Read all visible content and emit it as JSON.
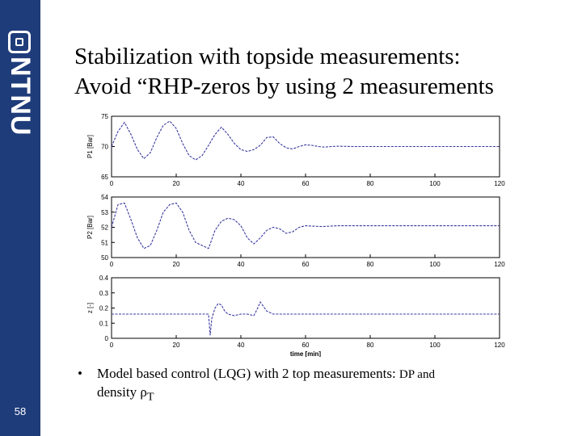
{
  "colors": {
    "brand": "#1f3c7a",
    "signal": "#3a3aa0"
  },
  "sidebar": {
    "brand_text": "NTNU",
    "logo_icon": "ntnu-logo-icon",
    "page_number": "58"
  },
  "slide": {
    "title_line1": "Stabilization with topside measurements:",
    "title_line2": "Avoid “RHP-zeros by using 2 measurements",
    "bullet_main": "Model based control (LQG) with 2 top measurements: ",
    "bullet_small": "DP and",
    "bullet_line2": "density ρ",
    "bullet_sub": "T"
  },
  "chart_data": [
    {
      "type": "line",
      "ylabel": "P1 [Bar]",
      "xlim": [
        0,
        120
      ],
      "ylim": [
        65,
        75
      ],
      "xticks": [
        0,
        20,
        40,
        60,
        80,
        100,
        120
      ],
      "yticks": [
        65,
        70,
        75
      ],
      "x": [
        0,
        2,
        4,
        6,
        8,
        10,
        12,
        14,
        16,
        18,
        20,
        22,
        24,
        26,
        28,
        30,
        32,
        34,
        36,
        38,
        40,
        42,
        44,
        46,
        48,
        50,
        52,
        54,
        56,
        58,
        60,
        62,
        64,
        66,
        68,
        70,
        75,
        80,
        85,
        90,
        95,
        100,
        105,
        110,
        115,
        120
      ],
      "y": [
        70,
        72.5,
        74,
        72,
        69.5,
        68,
        69,
        71.5,
        73.5,
        74.2,
        73,
        70.5,
        68.5,
        67.8,
        68.5,
        70.2,
        72,
        73.2,
        72,
        70.5,
        69.5,
        69.2,
        69.5,
        70.2,
        71.5,
        71.6,
        70.5,
        69.8,
        69.6,
        70,
        70.3,
        70.2,
        70,
        69.9,
        70,
        70.05,
        70,
        70,
        70,
        70,
        70,
        70,
        70,
        70,
        70,
        70
      ]
    },
    {
      "type": "line",
      "ylabel": "P2 [Bar]",
      "xlim": [
        0,
        120
      ],
      "ylim": [
        50,
        54
      ],
      "xticks": [
        0,
        20,
        40,
        60,
        80,
        100,
        120
      ],
      "yticks": [
        50,
        51,
        52,
        53,
        54
      ],
      "x": [
        0,
        2,
        4,
        6,
        8,
        10,
        12,
        14,
        16,
        18,
        20,
        22,
        24,
        26,
        28,
        30,
        32,
        34,
        36,
        38,
        40,
        42,
        44,
        46,
        48,
        50,
        52,
        54,
        56,
        58,
        60,
        65,
        70,
        75,
        80,
        85,
        90,
        100,
        110,
        120
      ],
      "y": [
        52,
        53.5,
        53.6,
        52.5,
        51.3,
        50.6,
        50.8,
        51.8,
        53,
        53.5,
        53.6,
        53,
        51.8,
        51,
        50.8,
        50.6,
        51.8,
        52.4,
        52.6,
        52.5,
        52.1,
        51.3,
        50.9,
        51.3,
        51.8,
        52,
        51.9,
        51.6,
        51.7,
        52,
        52.1,
        52.05,
        52.1,
        52.1,
        52.1,
        52.1,
        52.1,
        52.1,
        52.1,
        52.1
      ]
    },
    {
      "type": "line",
      "ylabel": "z [-]",
      "xlabel": "time [min]",
      "xlim": [
        0,
        120
      ],
      "ylim": [
        0,
        0.4
      ],
      "xticks": [
        0,
        20,
        40,
        60,
        80,
        100,
        120
      ],
      "yticks": [
        0,
        0.1,
        0.2,
        0.3,
        0.4
      ],
      "x": [
        0,
        10,
        20,
        30,
        30.5,
        31,
        32,
        33,
        34,
        35,
        36,
        38,
        40,
        42,
        44,
        45,
        46,
        47,
        48,
        50,
        52,
        55,
        60,
        80,
        100,
        120
      ],
      "y": [
        0.16,
        0.16,
        0.16,
        0.16,
        0.02,
        0.13,
        0.2,
        0.23,
        0.22,
        0.18,
        0.16,
        0.15,
        0.16,
        0.16,
        0.15,
        0.19,
        0.24,
        0.21,
        0.18,
        0.16,
        0.16,
        0.16,
        0.16,
        0.16,
        0.16,
        0.16
      ]
    }
  ]
}
